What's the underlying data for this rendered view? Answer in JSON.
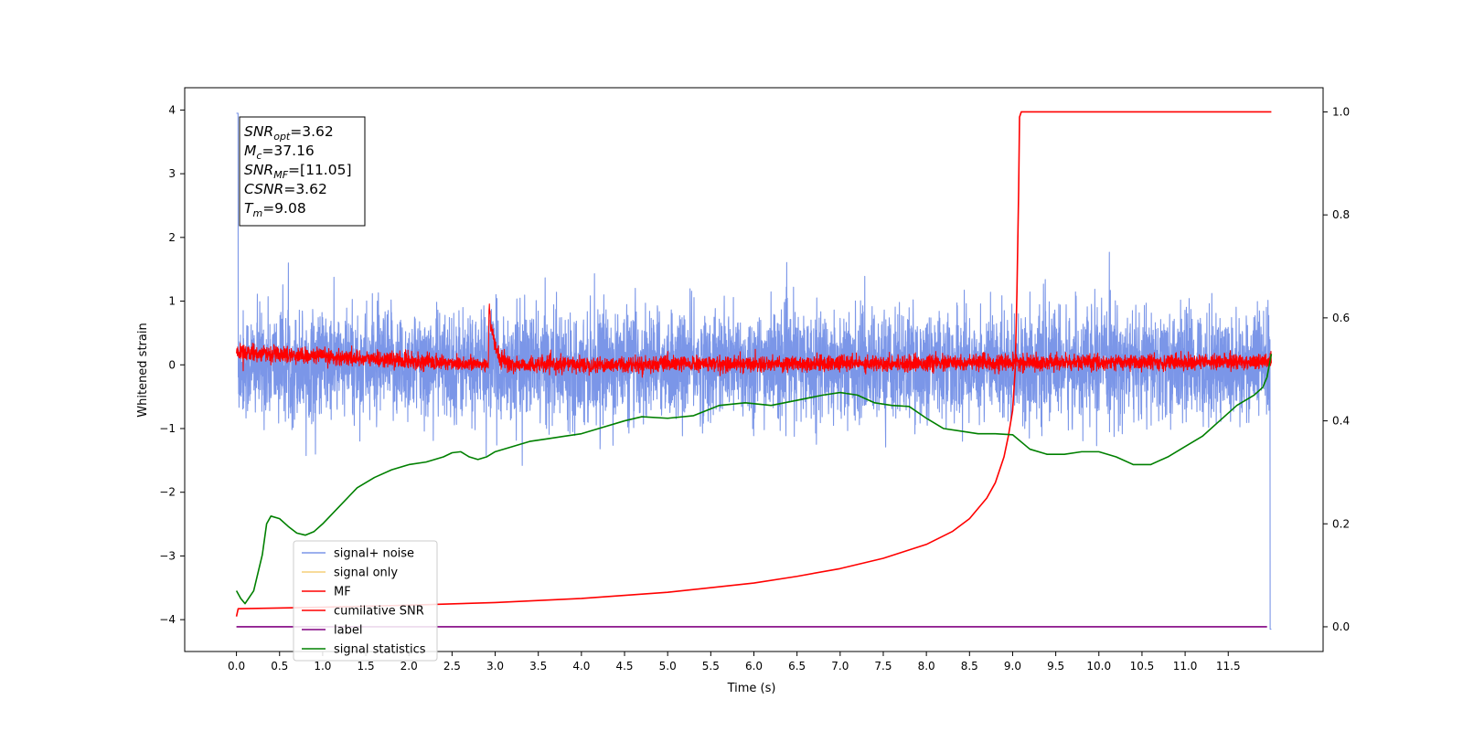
{
  "chart_data": {
    "type": "line",
    "xlabel": "Time (s)",
    "ylabel": "Whitened strain",
    "xlim": [
      -0.6,
      12.6
    ],
    "ylim_left": [
      -4.5,
      4.35
    ],
    "ylim_right": [
      -0.048,
      1.047
    ],
    "x_ticks": [
      "0.0",
      "0.5",
      "1.0",
      "1.5",
      "2.0",
      "2.5",
      "3.0",
      "3.5",
      "4.0",
      "4.5",
      "5.0",
      "5.5",
      "6.0",
      "6.5",
      "7.0",
      "7.5",
      "8.0",
      "8.5",
      "9.0",
      "9.5",
      "10.0",
      "10.5",
      "11.0",
      "11.5"
    ],
    "x_tick_values": [
      0.0,
      0.5,
      1.0,
      1.5,
      2.0,
      2.5,
      3.0,
      3.5,
      4.0,
      4.5,
      5.0,
      5.5,
      6.0,
      6.5,
      7.0,
      7.5,
      8.0,
      8.5,
      9.0,
      9.5,
      10.0,
      10.5,
      11.0,
      11.5
    ],
    "y_ticks_left": [
      "4",
      "3",
      "2",
      "1",
      "0",
      "−1",
      "−2",
      "−3",
      "−4"
    ],
    "y_tick_values_left": [
      4,
      3,
      2,
      1,
      0,
      -1,
      -2,
      -3,
      -4
    ],
    "y_ticks_right": [
      "1.0",
      "0.8",
      "0.6",
      "0.4",
      "0.2",
      "0.0"
    ],
    "y_tick_values_right": [
      1.0,
      0.8,
      0.6,
      0.4,
      0.2,
      0.0
    ],
    "grid": false,
    "legend_position": "lower-left",
    "legend": [
      {
        "name": "signal+ noise",
        "color": "#7b96e8"
      },
      {
        "name": "signal only",
        "color": "#f5cf78"
      },
      {
        "name": "MF",
        "color": "#ff0000"
      },
      {
        "name": "cumilative SNR",
        "color": "#ff0000"
      },
      {
        "name": "label",
        "color": "#800080"
      },
      {
        "name": "signal statistics",
        "color": "#008000"
      }
    ],
    "annotation": [
      {
        "base": "SNR",
        "sub": "opt",
        "value": "=3.62"
      },
      {
        "base": "M",
        "sub": "c",
        "value": "=37.16"
      },
      {
        "base": "SNR",
        "sub": "MF",
        "value": "=[11.05]"
      },
      {
        "base": "CSNR",
        "sub": "",
        "value": "=3.62"
      },
      {
        "base": "T",
        "sub": "m",
        "value": "=9.08"
      }
    ],
    "series": [
      {
        "key": "signal_noise",
        "axis": "left",
        "color": "#7b96e8",
        "noise_amplitude": 0.42,
        "x_range": [
          0.0,
          12.0
        ],
        "points": [
          [
            0.0,
            3.95
          ],
          [
            11.98,
            0.6
          ],
          [
            11.99,
            -4.15
          ]
        ]
      },
      {
        "key": "mf",
        "axis": "left",
        "color": "#ff0000",
        "noise_amplitude": 0.06,
        "x_range": [
          0.0,
          12.0
        ],
        "points": [
          [
            0.0,
            0.2
          ],
          [
            2.92,
            0.0
          ],
          [
            2.93,
            1.0
          ],
          [
            2.95,
            0.6
          ],
          [
            3.0,
            0.3
          ],
          [
            3.05,
            0.1
          ],
          [
            3.2,
            0.0
          ],
          [
            12.0,
            0.05
          ]
        ]
      },
      {
        "key": "cumulative_snr",
        "axis": "right",
        "color": "#ff0000",
        "points": [
          [
            0.0,
            0.02
          ],
          [
            0.02,
            0.035
          ],
          [
            1.0,
            0.038
          ],
          [
            2.0,
            0.042
          ],
          [
            3.0,
            0.047
          ],
          [
            4.0,
            0.055
          ],
          [
            5.0,
            0.067
          ],
          [
            6.0,
            0.085
          ],
          [
            6.5,
            0.098
          ],
          [
            7.0,
            0.113
          ],
          [
            7.5,
            0.133
          ],
          [
            8.0,
            0.16
          ],
          [
            8.3,
            0.185
          ],
          [
            8.5,
            0.21
          ],
          [
            8.7,
            0.25
          ],
          [
            8.8,
            0.28
          ],
          [
            8.9,
            0.33
          ],
          [
            8.95,
            0.37
          ],
          [
            9.0,
            0.42
          ],
          [
            9.03,
            0.5
          ],
          [
            9.05,
            0.65
          ],
          [
            9.07,
            0.85
          ],
          [
            9.08,
            0.99
          ],
          [
            9.1,
            1.0
          ],
          [
            12.0,
            1.0
          ]
        ]
      },
      {
        "key": "label",
        "axis": "right",
        "color": "#800080",
        "points": [
          [
            0.0,
            0.0
          ],
          [
            11.95,
            0.0
          ]
        ]
      },
      {
        "key": "signal_statistics",
        "axis": "right",
        "color": "#008000",
        "points": [
          [
            0.0,
            0.07
          ],
          [
            0.05,
            0.055
          ],
          [
            0.1,
            0.045
          ],
          [
            0.2,
            0.07
          ],
          [
            0.3,
            0.14
          ],
          [
            0.35,
            0.2
          ],
          [
            0.4,
            0.215
          ],
          [
            0.5,
            0.21
          ],
          [
            0.6,
            0.195
          ],
          [
            0.7,
            0.182
          ],
          [
            0.8,
            0.178
          ],
          [
            0.9,
            0.185
          ],
          [
            1.0,
            0.2
          ],
          [
            1.2,
            0.235
          ],
          [
            1.4,
            0.27
          ],
          [
            1.6,
            0.29
          ],
          [
            1.8,
            0.305
          ],
          [
            2.0,
            0.315
          ],
          [
            2.2,
            0.32
          ],
          [
            2.4,
            0.33
          ],
          [
            2.5,
            0.338
          ],
          [
            2.6,
            0.34
          ],
          [
            2.7,
            0.33
          ],
          [
            2.8,
            0.325
          ],
          [
            2.9,
            0.33
          ],
          [
            3.0,
            0.34
          ],
          [
            3.2,
            0.35
          ],
          [
            3.4,
            0.36
          ],
          [
            3.6,
            0.365
          ],
          [
            3.8,
            0.37
          ],
          [
            4.0,
            0.375
          ],
          [
            4.2,
            0.385
          ],
          [
            4.5,
            0.4
          ],
          [
            4.7,
            0.408
          ],
          [
            5.0,
            0.405
          ],
          [
            5.3,
            0.41
          ],
          [
            5.6,
            0.43
          ],
          [
            5.9,
            0.435
          ],
          [
            6.2,
            0.43
          ],
          [
            6.5,
            0.44
          ],
          [
            6.8,
            0.45
          ],
          [
            7.0,
            0.455
          ],
          [
            7.2,
            0.45
          ],
          [
            7.4,
            0.435
          ],
          [
            7.6,
            0.43
          ],
          [
            7.8,
            0.428
          ],
          [
            8.0,
            0.405
          ],
          [
            8.2,
            0.385
          ],
          [
            8.4,
            0.38
          ],
          [
            8.6,
            0.375
          ],
          [
            8.8,
            0.375
          ],
          [
            9.0,
            0.373
          ],
          [
            9.2,
            0.345
          ],
          [
            9.4,
            0.335
          ],
          [
            9.6,
            0.335
          ],
          [
            9.8,
            0.34
          ],
          [
            10.0,
            0.34
          ],
          [
            10.2,
            0.33
          ],
          [
            10.4,
            0.315
          ],
          [
            10.6,
            0.315
          ],
          [
            10.8,
            0.33
          ],
          [
            11.0,
            0.35
          ],
          [
            11.2,
            0.37
          ],
          [
            11.4,
            0.4
          ],
          [
            11.6,
            0.43
          ],
          [
            11.8,
            0.45
          ],
          [
            11.9,
            0.465
          ],
          [
            11.95,
            0.485
          ],
          [
            12.0,
            0.53
          ]
        ]
      }
    ]
  }
}
